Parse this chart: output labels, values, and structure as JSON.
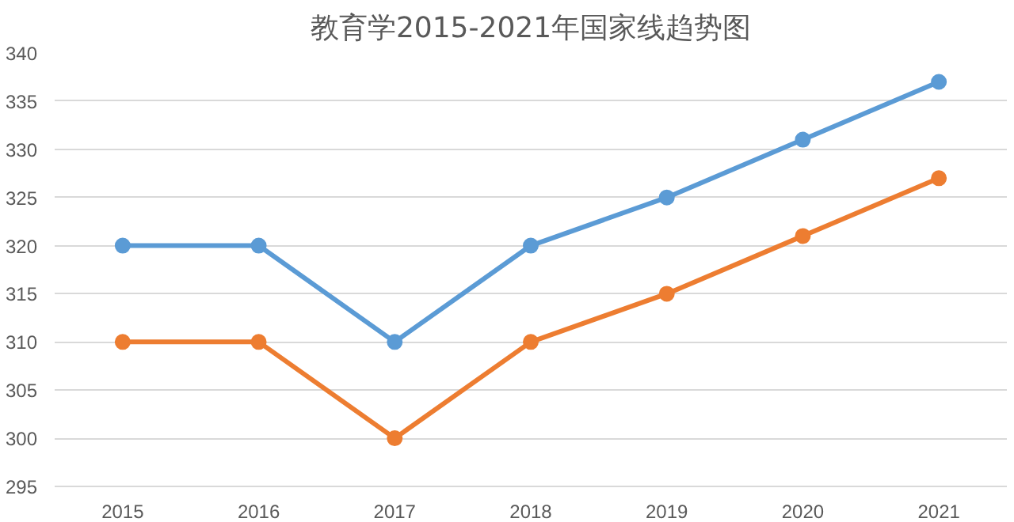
{
  "chart_data": {
    "type": "line",
    "title": "教育学2015-2021年国家线趋势图",
    "categories": [
      "2015",
      "2016",
      "2017",
      "2018",
      "2019",
      "2020",
      "2021"
    ],
    "series": [
      {
        "color": "#5b9bd5",
        "values": [
          320,
          320,
          310,
          320,
          325,
          331,
          337
        ]
      },
      {
        "color": "#ed7d31",
        "values": [
          310,
          310,
          300,
          310,
          315,
          321,
          327
        ]
      }
    ],
    "ylim": [
      295,
      340
    ],
    "yticks": [
      295,
      300,
      305,
      310,
      315,
      320,
      325,
      330,
      335,
      340
    ],
    "grid": "y",
    "marker": "circle",
    "line_style": "solid"
  }
}
